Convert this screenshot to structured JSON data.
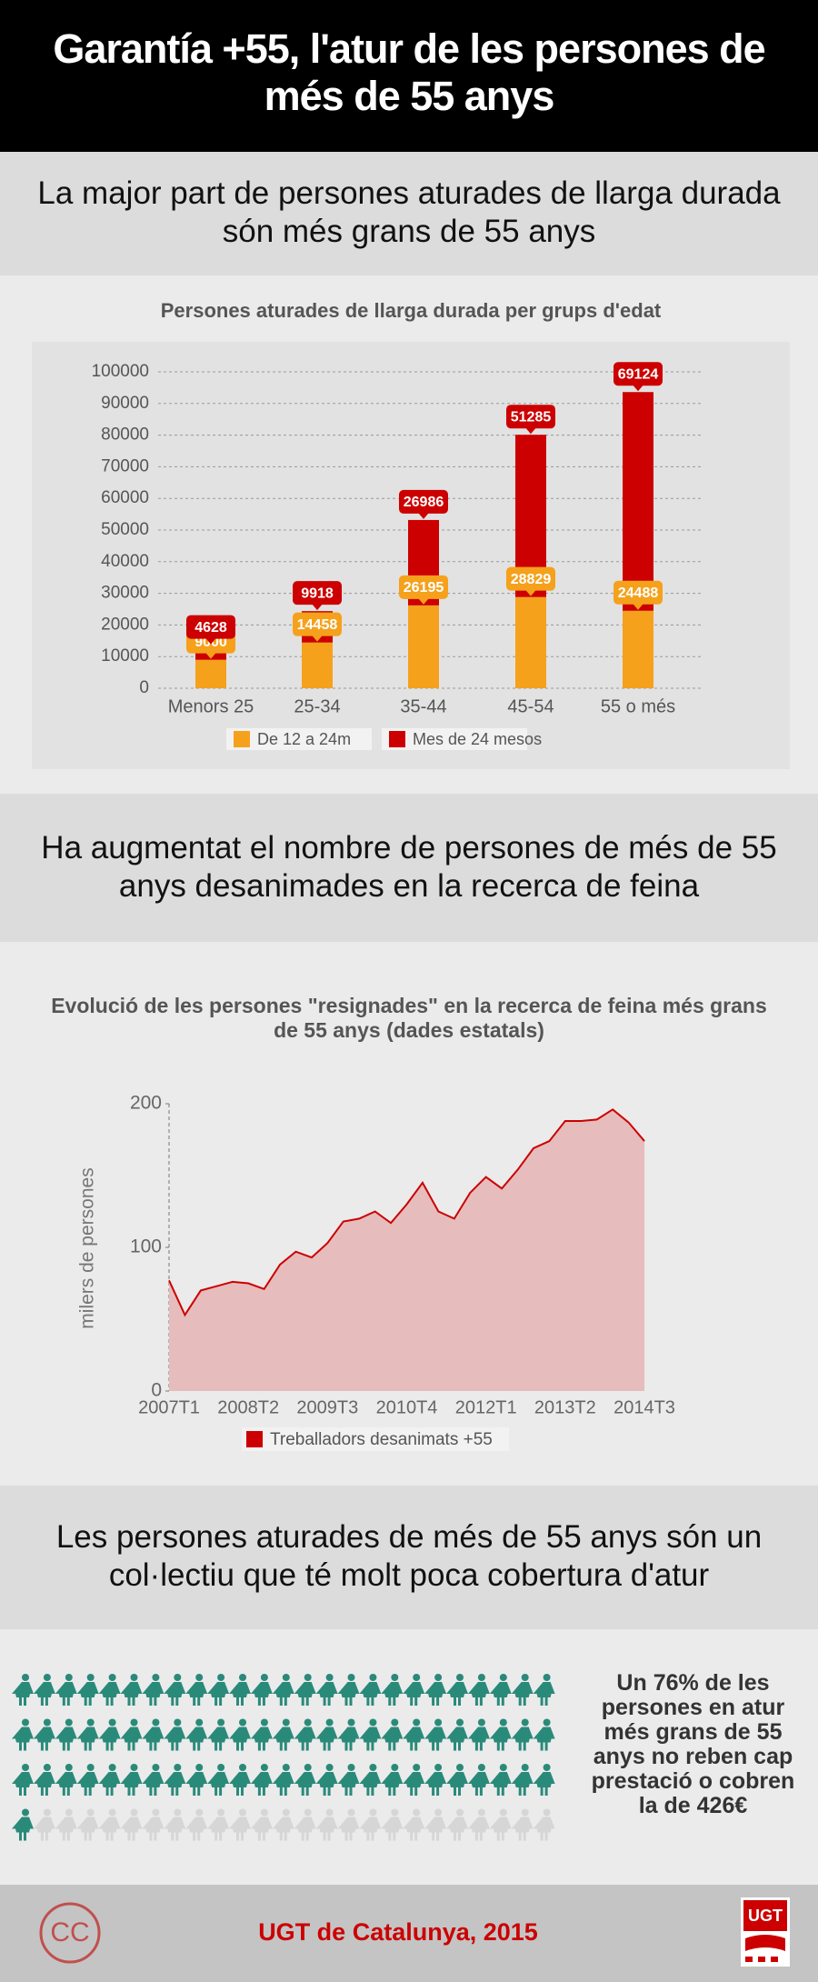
{
  "title": "Garantía +55, l'atur de les persones de més de 55 anys",
  "headings": [
    "La major part de persones aturades de llarga durada són més grans de 55 anys",
    "Ha augmentat el nombre de persones de més de 55 anys desanimades en la recerca de feina",
    "Les persones aturades de més de 55 anys són un col·lectiu que té molt poca cobertura d'atur"
  ],
  "chart_data": [
    {
      "type": "bar",
      "stacked": true,
      "title": "Persones aturades de llarga durada per grups d'edat",
      "categories": [
        "Menors 25",
        "25-34",
        "35-44",
        "45-54",
        "55 o més"
      ],
      "series": [
        {
          "name": "De 12 a 24m",
          "color": "#f5a11c",
          "values": [
            9000,
            14458,
            26195,
            28829,
            24488
          ]
        },
        {
          "name": "Mes de 24 mesos",
          "color": "#cc0000",
          "values": [
            4628,
            9918,
            26986,
            51285,
            69124
          ]
        }
      ],
      "ylim": [
        0,
        100000
      ],
      "yticks": [
        0,
        10000,
        20000,
        30000,
        40000,
        50000,
        60000,
        70000,
        80000,
        90000,
        100000
      ],
      "grid": true,
      "legend": "bottom"
    },
    {
      "type": "area",
      "title": "Evolució de les persones \"resignades\" en la recerca de feina més grans de 55 anys (dades estatals)",
      "y_label": "milers de persones",
      "categories": [
        "2007T1",
        null,
        null,
        null,
        null,
        "2008T2",
        null,
        null,
        null,
        null,
        "2009T3",
        null,
        null,
        null,
        null,
        "2010T4",
        null,
        null,
        null,
        null,
        "2012T1",
        null,
        null,
        null,
        null,
        "2013T2",
        null,
        null,
        null,
        null,
        "2014T3"
      ],
      "series": [
        {
          "name": "Treballadors desanimats +55",
          "color": "#cc0000",
          "fill": "#e6bcbc",
          "values": [
            77,
            53,
            70,
            73,
            76,
            75,
            71,
            88,
            97,
            93,
            103,
            118,
            120,
            125,
            117,
            130,
            145,
            125,
            120,
            138,
            149,
            141,
            154,
            169,
            174,
            188,
            188,
            189,
            196,
            187,
            174
          ]
        }
      ],
      "ylim": [
        0,
        200
      ],
      "yticks": [
        0,
        100,
        200
      ],
      "grid": false,
      "legend": "bottom"
    }
  ],
  "pictogram": {
    "value": 76,
    "total": 100,
    "color": "#2a8a7a",
    "empty_color": "#d6d6d6",
    "text": "Un 76% de les persones en atur més grans de 55 anys no reben cap prestació o cobren la de 426€"
  },
  "footer": {
    "license": "CC",
    "text": "UGT de Catalunya, 2015",
    "logo": "UGT"
  }
}
